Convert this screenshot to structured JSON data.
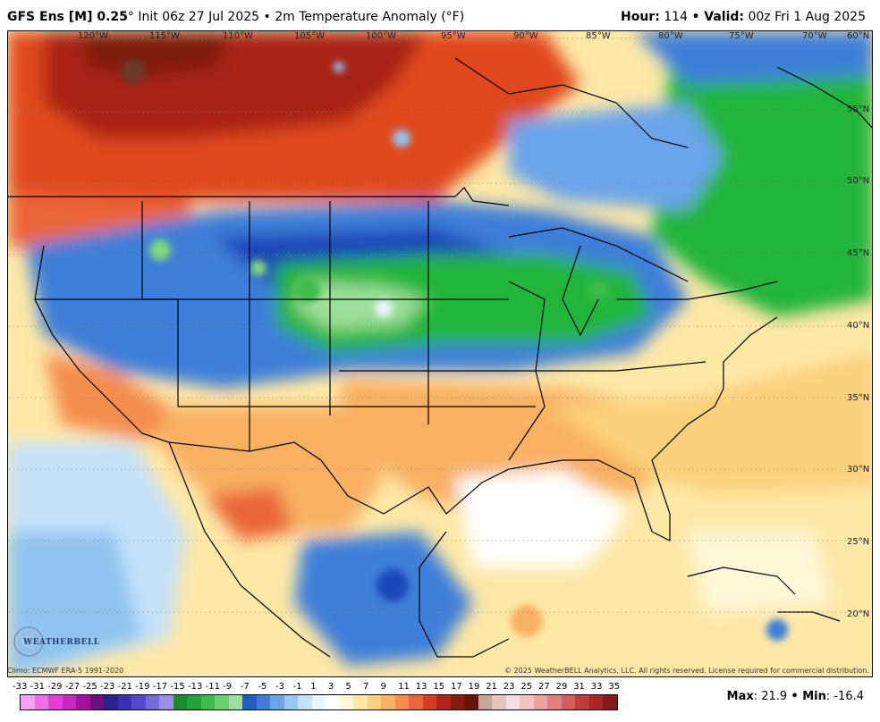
{
  "header": {
    "model": "GFS Ens [M] 0.25",
    "init": "° Init 06z 27 Jul 2025",
    "field": "• 2m Temperature Anomaly (°F)",
    "hour_label": "Hour:",
    "hour_value": "114",
    "valid_label": "• Valid:",
    "valid_value": "00z Fri 1 Aug 2025"
  },
  "map": {
    "lon_labels": [
      "120°W",
      "115°W",
      "110°W",
      "105°W",
      "100°W",
      "95°W",
      "90°W",
      "85°W",
      "80°W",
      "75°W",
      "70°W"
    ],
    "lat_labels": [
      "60°N",
      "55°N",
      "50°N",
      "45°N",
      "40°N",
      "35°N",
      "30°N",
      "25°N",
      "20°N"
    ],
    "colors": {
      "warm_dark": "#8b1a0e",
      "warm_mid": "#e0481f",
      "warm_light": "#f8a36b",
      "warm_pale": "#fde0b0",
      "neutral": "#ffffff",
      "cool_pale": "#cfe9fb",
      "cool_light": "#8fc4f0",
      "cool_mid": "#3d7fd9",
      "cool_dark": "#1d46b8",
      "green": "#22b53a",
      "green_light": "#80d87a"
    }
  },
  "logo": {
    "text": "WEATHERBELL"
  },
  "footer": {
    "climo": "Climo: ECMWF ERA-5 1991-2020",
    "copyright": "© 2025 WeatherBELL Analytics, LLC. All rights reserved. License required for commercial distribution."
  },
  "colorbar": {
    "labels": [
      "-33",
      "-31",
      "-29",
      "-27",
      "-25",
      "-23",
      "-21",
      "-19",
      "-17",
      "-15",
      "-13",
      "-11",
      "-9",
      "-7",
      "-5",
      "-3",
      "-1",
      "1",
      "3",
      "5",
      "7",
      "9",
      "11",
      "13",
      "15",
      "17",
      "19",
      "21",
      "23",
      "25",
      "27",
      "29",
      "31",
      "33",
      "35"
    ],
    "colors": [
      "#f7a1f0",
      "#ef6fe5",
      "#e23fd6",
      "#c627be",
      "#a1139f",
      "#6a0f7f",
      "#2d2190",
      "#3b2fb3",
      "#5548cc",
      "#7469db",
      "#9a90e8",
      "#1a8a2e",
      "#22a33a",
      "#3dbb4c",
      "#6bd06e",
      "#9ddf9a",
      "#1f5ec8",
      "#3d7fd9",
      "#6aa4ea",
      "#98c6f3",
      "#c5e2f9",
      "#eaf5fd",
      "#ffffff",
      "#fff7d8",
      "#fde8a6",
      "#fbd07a",
      "#f8b062",
      "#f48d4e",
      "#ea6539",
      "#d23d24",
      "#b0241a",
      "#8b1a0e",
      "#6a1309",
      "#c9a49a",
      "#e7c3bb",
      "#f6dede",
      "#f5c2c2",
      "#eea1a1",
      "#e27f7f",
      "#d35c5c",
      "#c03b3b",
      "#a72626",
      "#8a1818"
    ]
  },
  "stats": {
    "max_label": "Max",
    "max_value": ": 21.9",
    "min_label": "• Min",
    "min_value": ": -16.4"
  }
}
